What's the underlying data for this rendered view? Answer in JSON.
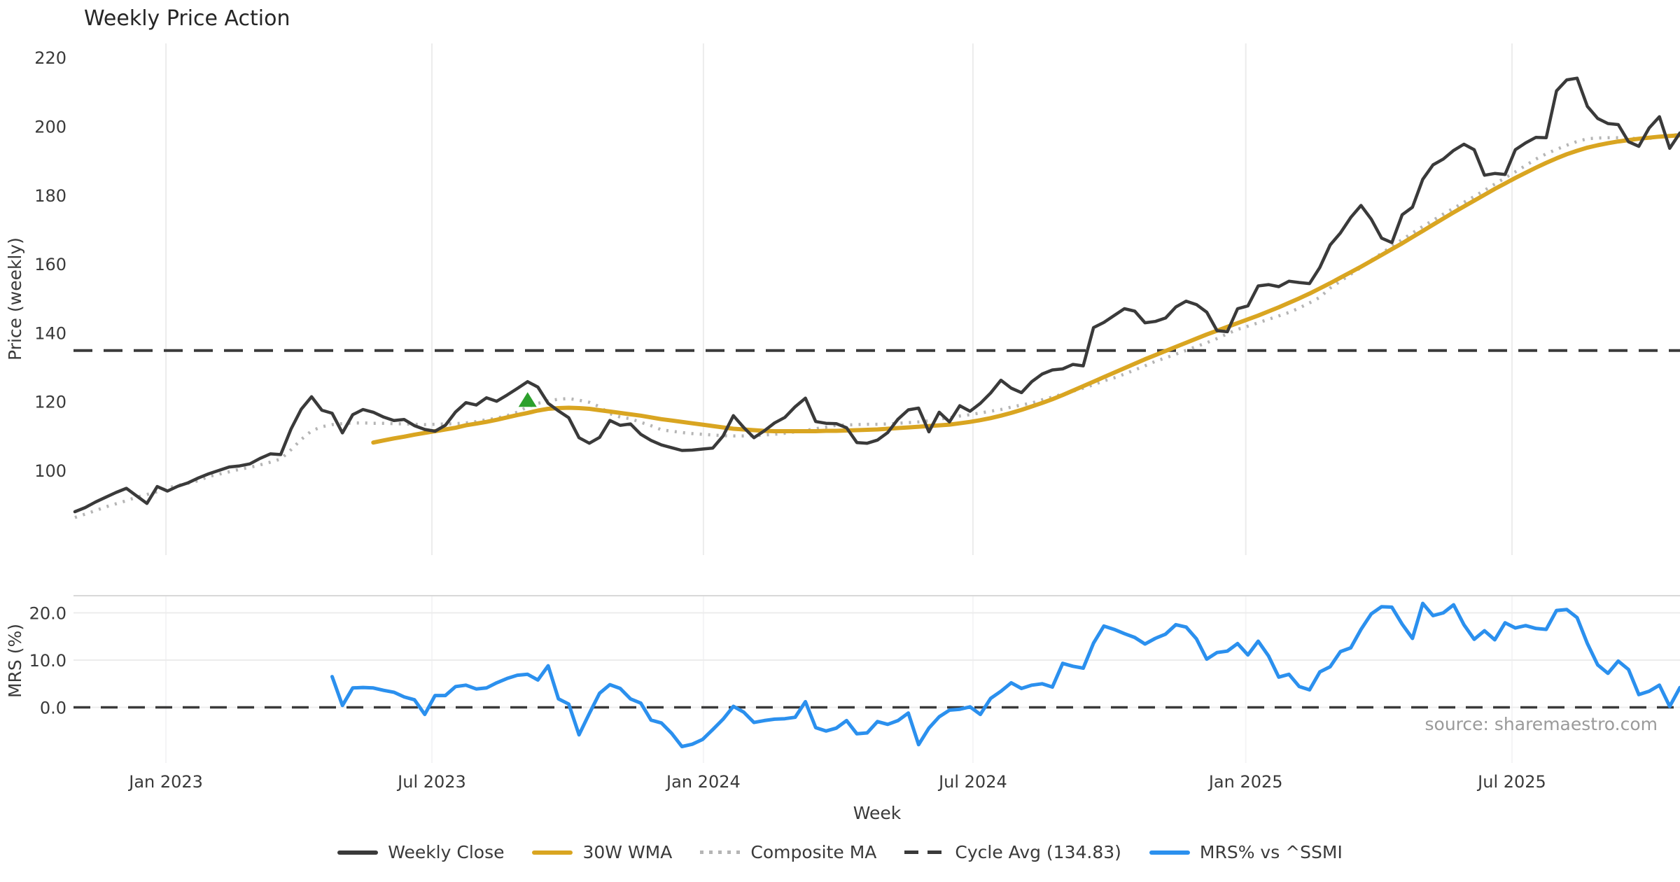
{
  "title": "Weekly Price Action",
  "xlabel": "Week",
  "source_note": "source: sharemaestro.com",
  "top_axis": {
    "ylabel": "Price (weekly)",
    "yticks": [
      220,
      200,
      180,
      160,
      140,
      120,
      100
    ]
  },
  "bottom_axis": {
    "ylabel": "MRS (%)",
    "yticks": [
      20,
      10,
      0
    ],
    "ytick_labels": [
      "20.0",
      "10.0",
      "0.0"
    ]
  },
  "x_ticks": [
    {
      "label": "Jan 2023",
      "week": 8.85
    },
    {
      "label": "Jul 2023",
      "week": 34.7
    },
    {
      "label": "Jan 2024",
      "week": 61.09
    },
    {
      "label": "Jul 2024",
      "week": 87.28
    },
    {
      "label": "Jan 2025",
      "week": 113.8
    },
    {
      "label": "Jul 2025",
      "week": 139.67
    }
  ],
  "colors": {
    "close": "#3a3a3a",
    "wma": "#d9a521",
    "composite": "#b5b5b5",
    "cycle": "#3a3a3a",
    "mrs": "#2b90ee",
    "marker_green": "#2ca02c",
    "grid": "#ececec",
    "grid_faint": "#f4f4f6",
    "panel_top_spine": "#d8d8d8"
  },
  "legend": [
    {
      "label": "Weekly Close",
      "style": "solid",
      "color": "#3a3a3a"
    },
    {
      "label": "30W WMA",
      "style": "solid",
      "color": "#d9a521"
    },
    {
      "label": "Composite MA",
      "style": "dotted",
      "color": "#b5b5b5"
    },
    {
      "label": "Cycle Avg (134.83)",
      "style": "dashed",
      "color": "#3a3a3a"
    },
    {
      "label": "MRS% vs ^SSMI",
      "style": "solid",
      "color": "#2b90ee"
    }
  ],
  "chart_data": [
    {
      "type": "line",
      "panel": "price",
      "title": "Weekly Price Action",
      "xlabel": "Week",
      "ylabel": "Price (weekly)",
      "ylim": [
        75.5,
        224.2
      ],
      "grid": "vertical-only",
      "x_unit": "weekly, Nov 2022 through Nov 2025 (157 weeks)",
      "cycle_avg": 134.83,
      "series": [
        {
          "name": "Weekly Close",
          "style": "solid",
          "color": "#3a3a3a",
          "start_week": 0,
          "values": [
            88.0,
            89.2,
            90.8,
            92.2,
            93.6,
            94.8,
            92.6,
            90.4,
            95.3,
            94.0,
            95.4,
            96.4,
            97.8,
            99.0,
            100.0,
            101.0,
            101.3,
            101.9,
            103.5,
            104.8,
            104.6,
            112.0,
            117.8,
            121.4,
            117.5,
            116.6,
            110.9,
            116.2,
            117.7,
            116.9,
            115.5,
            114.5,
            114.8,
            113.0,
            111.9,
            111.4,
            113.1,
            117.0,
            119.7,
            119.0,
            121.1,
            120.1,
            121.9,
            123.8,
            125.8,
            124.2,
            119.5,
            117.3,
            115.3,
            109.5,
            107.9,
            109.6,
            114.5,
            113.1,
            113.5,
            110.5,
            108.7,
            107.4,
            106.6,
            105.8,
            105.9,
            106.2,
            106.5,
            110.0,
            115.9,
            112.5,
            109.5,
            111.5,
            113.8,
            115.4,
            118.5,
            121.0,
            114.2,
            113.7,
            113.6,
            112.4,
            108.1,
            107.9,
            108.8,
            111.0,
            114.9,
            117.6,
            118.1,
            111.2,
            116.9,
            114.1,
            118.8,
            117.2,
            119.5,
            122.5,
            126.2,
            123.9,
            122.6,
            125.8,
            128.0,
            129.2,
            129.5,
            130.8,
            130.4,
            141.5,
            143.0,
            145.0,
            147.0,
            146.3,
            142.9,
            143.3,
            144.3,
            147.5,
            149.2,
            148.2,
            146.0,
            140.6,
            140.3,
            147.0,
            147.8,
            153.6,
            154.0,
            153.4,
            155.0,
            154.6,
            154.3,
            159.0,
            165.5,
            169.0,
            173.5,
            177.0,
            173.0,
            167.5,
            166.2,
            174.3,
            176.5,
            184.6,
            188.8,
            190.5,
            193.0,
            194.8,
            193.2,
            185.8,
            186.3,
            186.0,
            193.2,
            195.2,
            196.8,
            196.7,
            210.3,
            213.5,
            214.0,
            205.8,
            202.3,
            200.8,
            200.5,
            195.5,
            194.2,
            199.5,
            202.8,
            193.6,
            198.1
          ]
        },
        {
          "name": "30W WMA",
          "style": "solid",
          "color": "#d9a521",
          "start_week": 29,
          "values": [
            108.1,
            108.7,
            109.3,
            109.8,
            110.4,
            110.9,
            111.4,
            111.9,
            112.4,
            113.1,
            113.6,
            114.1,
            114.7,
            115.4,
            116.1,
            116.7,
            117.4,
            117.9,
            118.1,
            118.2,
            118.1,
            117.9,
            117.5,
            117.1,
            116.7,
            116.3,
            115.9,
            115.4,
            114.9,
            114.5,
            114.1,
            113.7,
            113.3,
            112.9,
            112.5,
            112.1,
            111.9,
            111.7,
            111.5,
            111.4,
            111.4,
            111.4,
            111.4,
            111.4,
            111.5,
            111.5,
            111.6,
            111.7,
            111.8,
            111.9,
            112.1,
            112.3,
            112.5,
            112.7,
            112.9,
            113.1,
            113.3,
            113.7,
            114.1,
            114.6,
            115.2,
            115.9,
            116.7,
            117.6,
            118.6,
            119.6,
            120.7,
            121.9,
            123.2,
            124.5,
            125.8,
            127.1,
            128.4,
            129.7,
            131.0,
            132.3,
            133.5,
            134.7,
            135.9,
            137.1,
            138.3,
            139.5,
            140.6,
            141.7,
            142.8,
            143.9,
            145.0,
            146.2,
            147.4,
            148.7,
            150.0,
            151.4,
            152.9,
            154.4,
            156.0,
            157.6,
            159.2,
            160.9,
            162.6,
            164.3,
            166.0,
            167.8,
            169.6,
            171.4,
            173.2,
            175.0,
            176.7,
            178.4,
            180.1,
            181.8,
            183.4,
            185.0,
            186.5,
            188.0,
            189.4,
            190.7,
            191.9,
            192.9,
            193.8,
            194.5,
            195.1,
            195.6,
            196.0,
            196.4,
            196.7,
            197.0,
            197.2,
            197.4
          ]
        },
        {
          "name": "Composite MA",
          "style": "dotted",
          "color": "#b5b5b5",
          "start_week": 0,
          "values": [
            86.3,
            87.3,
            88.3,
            89.4,
            90.3,
            91.2,
            92.2,
            93.0,
            93.8,
            94.9,
            95.6,
            96.3,
            97.0,
            98.2,
            98.9,
            99.6,
            100.3,
            100.9,
            101.6,
            102.4,
            103.3,
            106.0,
            109.0,
            111.5,
            112.7,
            113.3,
            113.6,
            113.8,
            113.8,
            113.7,
            113.7,
            113.6,
            113.5,
            113.4,
            113.3,
            113.4,
            113.5,
            113.6,
            113.8,
            114.2,
            114.7,
            115.2,
            115.9,
            116.9,
            118.5,
            119.5,
            120.2,
            120.7,
            120.9,
            120.4,
            119.8,
            118.5,
            116.5,
            115.5,
            115.0,
            114.0,
            113.0,
            111.8,
            111.4,
            111.0,
            110.7,
            110.5,
            110.3,
            110.1,
            110.0,
            110.0,
            110.1,
            110.3,
            110.5,
            110.8,
            111.2,
            111.6,
            112.1,
            112.6,
            113.1,
            113.2,
            113.3,
            113.4,
            113.4,
            113.5,
            113.7,
            113.9,
            114.1,
            114.4,
            114.9,
            115.3,
            115.8,
            116.2,
            116.7,
            117.2,
            117.7,
            118.4,
            119.0,
            119.6,
            120.5,
            121.3,
            122.2,
            123.0,
            123.9,
            124.9,
            126.0,
            126.9,
            128.0,
            129.2,
            130.4,
            131.7,
            132.7,
            133.8,
            134.9,
            136.0,
            137.1,
            138.3,
            139.7,
            141.0,
            141.9,
            142.9,
            143.9,
            144.9,
            145.9,
            147.2,
            148.7,
            150.3,
            153.0,
            155.0,
            157.0,
            159.0,
            161.1,
            163.1,
            165.1,
            167.1,
            169.0,
            170.9,
            172.7,
            174.5,
            176.2,
            177.9,
            179.6,
            181.4,
            183.2,
            185.0,
            186.8,
            188.6,
            190.5,
            192.0,
            193.3,
            194.5,
            195.6,
            196.4,
            196.6,
            196.7,
            196.7,
            196.6,
            196.4,
            196.5,
            196.9,
            197.3,
            197.7
          ]
        },
        {
          "name": "Cycle Avg",
          "style": "dashed",
          "color": "#3a3a3a",
          "const_value": 134.83
        }
      ],
      "markers": [
        {
          "shape": "triangle-up",
          "color": "#2ca02c",
          "week": 44,
          "value": 120.5
        }
      ]
    },
    {
      "type": "line",
      "panel": "mrs",
      "ylabel": "MRS (%)",
      "ylim": [
        -11.8,
        23.6
      ],
      "zero_dashed_line": true,
      "series": [
        {
          "name": "MRS% vs ^SSMI",
          "style": "solid",
          "color": "#2b90ee",
          "start_week": 25,
          "values": [
            6.5,
            0.4,
            4.1,
            4.2,
            4.1,
            3.6,
            3.2,
            2.2,
            1.6,
            -1.5,
            2.5,
            2.5,
            4.4,
            4.7,
            3.9,
            4.1,
            5.2,
            6.1,
            6.8,
            7.0,
            5.8,
            8.8,
            1.8,
            0.7,
            -5.8,
            -1.3,
            3.0,
            4.8,
            4.0,
            1.8,
            0.9,
            -2.7,
            -3.3,
            -5.5,
            -8.3,
            -7.8,
            -6.8,
            -4.7,
            -2.5,
            0.2,
            -1.0,
            -3.2,
            -2.8,
            -2.5,
            -2.4,
            -2.1,
            1.2,
            -4.3,
            -5.0,
            -4.4,
            -2.8,
            -5.6,
            -5.4,
            -3.0,
            -3.6,
            -2.8,
            -1.2,
            -7.9,
            -4.4,
            -2.0,
            -0.6,
            -0.4,
            0.1,
            -1.5,
            1.9,
            3.4,
            5.2,
            4.0,
            4.7,
            5.0,
            4.3,
            9.3,
            8.7,
            8.3,
            13.6,
            17.2,
            16.5,
            15.6,
            14.8,
            13.4,
            14.6,
            15.5,
            17.5,
            17.0,
            14.5,
            10.2,
            11.6,
            11.9,
            13.5,
            11.1,
            14.0,
            10.9,
            6.4,
            7.0,
            4.4,
            3.7,
            7.5,
            8.6,
            11.8,
            12.6,
            16.5,
            19.8,
            21.3,
            21.2,
            17.6,
            14.6,
            22.0,
            19.4,
            20.0,
            21.7,
            17.5,
            14.4,
            16.2,
            14.3,
            17.9,
            16.8,
            17.3,
            16.7,
            16.5,
            20.5,
            20.7,
            19.0,
            13.5,
            9.0,
            7.2,
            9.8,
            8.0,
            2.7,
            3.4,
            4.7,
            0.2,
            4.2
          ]
        }
      ]
    }
  ]
}
